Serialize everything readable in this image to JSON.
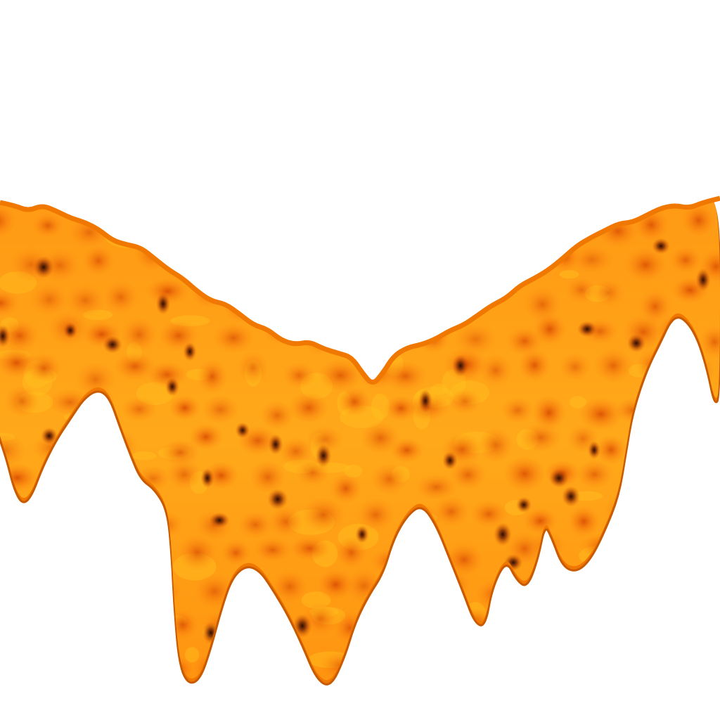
{
  "scene": {
    "subject": "orange-cellular-dripping-surface",
    "colors": {
      "background": "#ffffff",
      "base": "#ff8c10",
      "highlight": "#ffc020",
      "cell_core": "#e85a00",
      "dark_spot": "#4a1a05",
      "rim": "#f07800",
      "rim_dark": "#c85a00"
    }
  }
}
